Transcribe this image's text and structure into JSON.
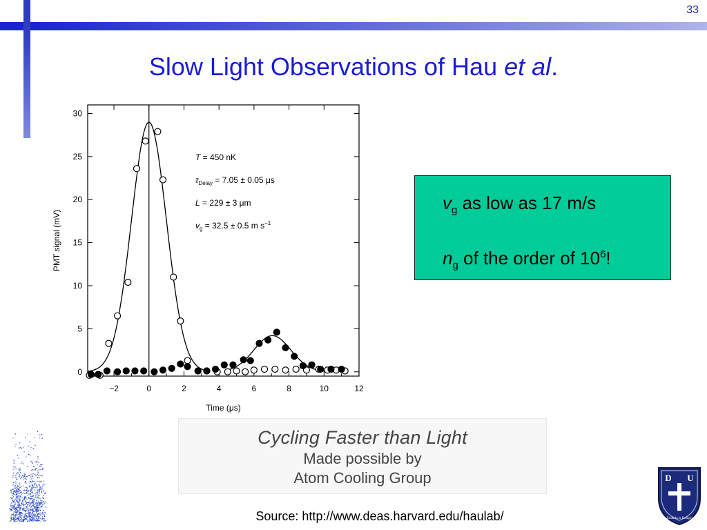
{
  "slide": {
    "page_number": "33",
    "title_main": "Slow Light Observations of Hau ",
    "title_italic": "et al",
    "title_end": "."
  },
  "figure": {
    "params": [
      "T = 450 nK",
      "τDelay = 7.05 ± 0.05 μs",
      "L = 229 ± 3 μm",
      "vg = 32.5 ± 0.5 m s−1"
    ],
    "param_main": [
      "T",
      "τ",
      "L",
      "v"
    ],
    "param_sub": [
      "",
      "Delay",
      "",
      "g"
    ],
    "param_rest": [
      " = 450 nK",
      " = 7.05 ± 0.05 μs",
      " = 229 ± 3 μm",
      " = 32.5 ± 0.5 m s"
    ],
    "param_sup": [
      "",
      "",
      "",
      "−1"
    ]
  },
  "chart_data": {
    "type": "scatter",
    "xlabel": "Time (μs)",
    "ylabel": "PMT signal (mV)",
    "xlim": [
      -3.5,
      12
    ],
    "ylim": [
      -0.5,
      31
    ],
    "x_ticks": [
      "−2",
      "0",
      "2",
      "4",
      "6",
      "8",
      "10",
      "12"
    ],
    "x_tick_values": [
      -2,
      0,
      2,
      4,
      6,
      8,
      10,
      12
    ],
    "y_ticks": [
      "0",
      "5",
      "10",
      "15",
      "20",
      "25",
      "30"
    ],
    "y_tick_values": [
      0,
      5,
      10,
      15,
      20,
      25,
      30
    ],
    "vertical_line_x": 0,
    "series": [
      {
        "marker": "open-circle",
        "x": [
          -3.4,
          -2.8,
          -2.3,
          -1.8,
          -1.2,
          -0.7,
          -0.2,
          0.5,
          0.8,
          1.4,
          1.8,
          2.2,
          2.8,
          3.3,
          3.9,
          4.5,
          5.0,
          5.5,
          6.0,
          6.6,
          7.2,
          7.8,
          8.4,
          9.0,
          9.7,
          10.2,
          10.7,
          11.2
        ],
        "y": [
          -0.4,
          -0.4,
          3.3,
          6.5,
          10.4,
          23.6,
          26.8,
          27.9,
          22.3,
          11.0,
          5.9,
          1.3,
          0.1,
          0.1,
          0.0,
          0.0,
          0.1,
          0.0,
          0.2,
          0.3,
          0.3,
          0.2,
          0.3,
          0.2,
          0.3,
          0.2,
          0.2,
          0.1
        ]
      },
      {
        "marker": "filled-circle",
        "x": [
          -3.3,
          -2.9,
          -2.4,
          -1.8,
          -1.3,
          -0.8,
          -0.3,
          0.3,
          0.8,
          1.3,
          1.8,
          2.2,
          2.8,
          3.3,
          3.8,
          4.3,
          4.8,
          5.4,
          5.8,
          6.3,
          6.8,
          7.3,
          7.8,
          8.3,
          8.8,
          9.3,
          9.8,
          10.4,
          11.0
        ],
        "y": [
          -0.3,
          -0.3,
          0.1,
          0.0,
          0.1,
          0.1,
          0.1,
          0.0,
          0.2,
          0.4,
          0.9,
          0.6,
          0.1,
          0.1,
          0.3,
          0.8,
          0.8,
          1.4,
          1.3,
          3.3,
          3.7,
          4.6,
          2.8,
          1.8,
          0.7,
          0.8,
          0.3,
          0.3,
          0.3
        ]
      }
    ],
    "fit_curves": [
      {
        "amplitude": 29,
        "center": 0,
        "sigma": 1.0,
        "x_range": [
          -3.5,
          3.5
        ]
      },
      {
        "amplitude": 4.2,
        "center": 7.05,
        "sigma": 1.05,
        "x_range": [
          4.5,
          10
        ]
      }
    ]
  },
  "info_box": {
    "line1_main": "v",
    "line1_sub": "g",
    "line1_rest": " as low as 17 m/s",
    "line2_main": "n",
    "line2_sub": "g",
    "line2_rest": " of the order of 10",
    "line2_sup": "6",
    "line2_end": "!"
  },
  "banner": {
    "line1": "Cycling Faster than Light",
    "line2": "Made possible by",
    "line3": "Atom Cooling Group"
  },
  "source": "Source: http://www.deas.harvard.edu/haulab/",
  "crest": {
    "letters": [
      "D",
      "U"
    ],
    "motto": "Eruditio et Religio"
  },
  "colors": {
    "title": "#1b1bd6",
    "bar": "#2f3cc0",
    "info_box": "#00cc99"
  }
}
